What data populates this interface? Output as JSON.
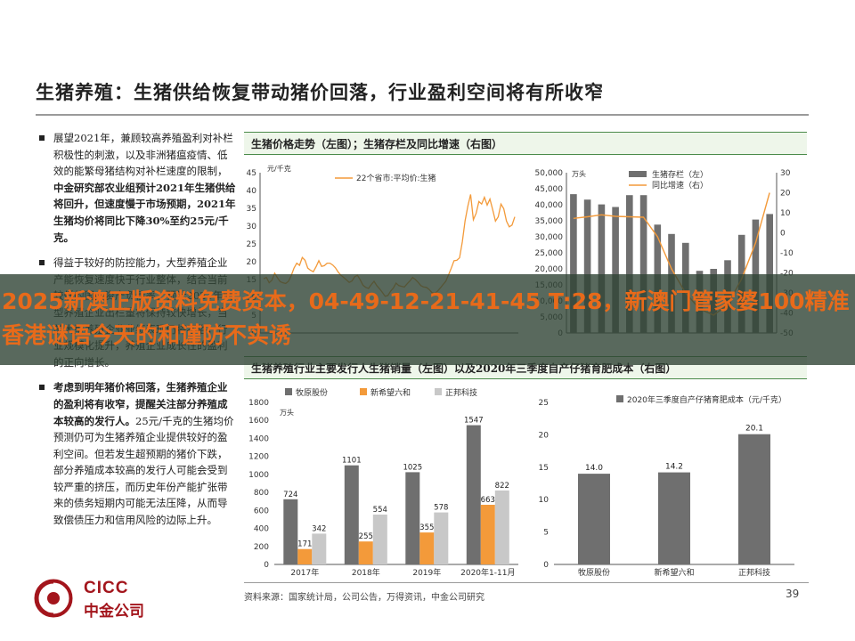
{
  "title": "生猪养殖：生猪供给恢复带动猪价回落，行业盈利空间将有所收窄",
  "bullets": [
    {
      "parts": [
        {
          "t": "展望2021年，兼顾较高养殖盈利对补栏积极性的刺激，以及非洲猪瘟疫情、低效的能繁母猪结构对补栏速度的限制，",
          "b": false
        },
        {
          "t": "中金研究部农业组预计2021年生猪供给将回升，但速度慢于市场预期，2021年生猪均价将同比下降30%至约25元/千克。",
          "b": true
        }
      ]
    },
    {
      "parts": [
        {
          "t": "得益于较好的防控能力，大型养殖企业产能恢复速度快于行业整体，结合当前较低的国内资产负债率，预计2021年大型养殖企业出栏量将保持较快增长，当前大型养殖企业业绩表现仍将不俗，行业规模化提升，养殖企业成长性的盈利的正向增长。",
          "b": false
        }
      ]
    },
    {
      "parts": [
        {
          "t": "考虑到明年猪价将回落，生猪养殖企业的盈利将有收窄，提醒关注部分养殖成本较高的发行人。",
          "b": true
        },
        {
          "t": "25元/千克的生猪均价预测仍可为生猪养殖企业提供较好的盈利空间。但若发生超预期的猪价下跌，部分养殖成本较高的发行人可能会受到较严重的挤压，而历史年份产能扩张带来的债务短期内可能无法压降，从而导致偿债压力和信用风险的边际上升。",
          "b": false
        }
      ]
    }
  ],
  "panel1_title": "生猪价格走势（左图）；生猪存栏及同比增速（右图）",
  "panel2_title": "生猪养殖行业主要发行人生猪销量（左图）以及2020年三季度自产仔猪育肥成本（右图）",
  "banner_text": "2025新澳正版资料免费资本，04-49-12-21-41-45 T:28，新澳门管家婆100精准香港谜语今天的和谨防不实诱",
  "footer_source": "资料来源：国家统计局，公司公告，万得资讯，中金公司研究",
  "page_number": "39",
  "logo": {
    "en": "CICC",
    "cn": "中金公司"
  },
  "colors": {
    "orange": "#f39a3a",
    "dark_gray": "#6f6f6f",
    "light_gray": "#c8c8c8",
    "header_green": "#eef6ea",
    "brand_red": "#a3151c"
  },
  "chart_data": [
    {
      "type": "line",
      "id": "price",
      "ylabel": "元/千克",
      "ylim": [
        0,
        45
      ],
      "yticks": [
        0,
        5,
        10,
        15,
        20,
        25,
        30,
        35,
        40,
        45
      ],
      "series": [
        {
          "name": "22个省市:平均价:生猪",
          "color": "#f39a3a"
        }
      ],
      "values": [
        15.2,
        15.6,
        14.1,
        14.8,
        16.8,
        15.5,
        14.4,
        14.1,
        13.9,
        14.5,
        16.1,
        18.2,
        19.6,
        19.0,
        21.2,
        20.4,
        18.2,
        17.6,
        17.2,
        18.6,
        20.3,
        18.7,
        18.9,
        19.6,
        19.6,
        19.1,
        18.3,
        17.1,
        16.2,
        15.6,
        14.9,
        14.2,
        14.6,
        15.8,
        16.2,
        14.9,
        13.4,
        12.8,
        12.5,
        13.6,
        14.5,
        13.3,
        12.4,
        11.4,
        10.3,
        10.5,
        11.7,
        12.6,
        14.0,
        13.3,
        13.1,
        12.9,
        13.8,
        14.6,
        15.6,
        15.0,
        14.2,
        13.3,
        12.9,
        12.8,
        12.2,
        11.3,
        11.1,
        11.7,
        12.6,
        13.6,
        14.5,
        16.3,
        18.2,
        20.3,
        20.4,
        21.1,
        25.6,
        31.5,
        35.6,
        38.9,
        31.8,
        33.6,
        36.9,
        36.2,
        38.1,
        35.9,
        37.6,
        34.6,
        31.4,
        32.6,
        36.2,
        34.9,
        31.4,
        29.8,
        30.3,
        32.6
      ]
    },
    {
      "type": "bar+line",
      "id": "inventory",
      "ylabel_left": "万头",
      "ylim_left": [
        0,
        50000
      ],
      "yticks_left": [
        0,
        5000,
        10000,
        15000,
        20000,
        25000,
        30000,
        35000,
        40000,
        45000,
        50000
      ],
      "ylim_right": [
        -50,
        30
      ],
      "yticks_right": [
        -50,
        -40,
        -30,
        -20,
        -10,
        0,
        10,
        20,
        30
      ],
      "series": [
        {
          "name": "生猪存栏（左）",
          "type": "bar",
          "color": "#6f6f6f",
          "values": [
            43300,
            41600,
            40100,
            39300,
            43000,
            43000,
            33800,
            30900,
            28100,
            19400,
            20000,
            22700,
            30600,
            35400,
            37100
          ]
        },
        {
          "name": "同比增速（右）",
          "type": "line",
          "color": "#f39a3a",
          "values": [
            7.2,
            8.0,
            9.0,
            8.2,
            8.0,
            7.8,
            -2.0,
            -18.0,
            -30.0,
            -38.0,
            -41.1,
            -36.0,
            -23.0,
            -5.0,
            20.0
          ]
        }
      ]
    },
    {
      "type": "bar",
      "id": "sales",
      "ylabel": "万头",
      "ylim": [
        0,
        1800
      ],
      "yticks": [
        0,
        200,
        400,
        600,
        800,
        1000,
        1200,
        1400,
        1600,
        1800
      ],
      "categories": [
        "2017年",
        "2018年",
        "2019年",
        "2020年1-11月"
      ],
      "series": [
        {
          "name": "牧原股份",
          "color": "#6f6f6f",
          "values": [
            724,
            1101,
            1025,
            1547
          ]
        },
        {
          "name": "新希望六和",
          "color": "#f39a3a",
          "values": [
            171,
            255,
            355,
            663
          ]
        },
        {
          "name": "正邦科技",
          "color": "#c8c8c8",
          "values": [
            342,
            554,
            578,
            822
          ]
        }
      ]
    },
    {
      "type": "bar",
      "id": "cost",
      "ylim": [
        0,
        25
      ],
      "yticks": [
        0,
        5,
        10,
        15,
        20,
        25
      ],
      "categories": [
        "牧原股份",
        "新希望六和",
        "正邦科技"
      ],
      "series": [
        {
          "name": "2020年三季度自产仔猪育肥成本（元/千克）",
          "color": "#6f6f6f",
          "values": [
            14.0,
            14.2,
            20.1
          ]
        }
      ]
    }
  ]
}
